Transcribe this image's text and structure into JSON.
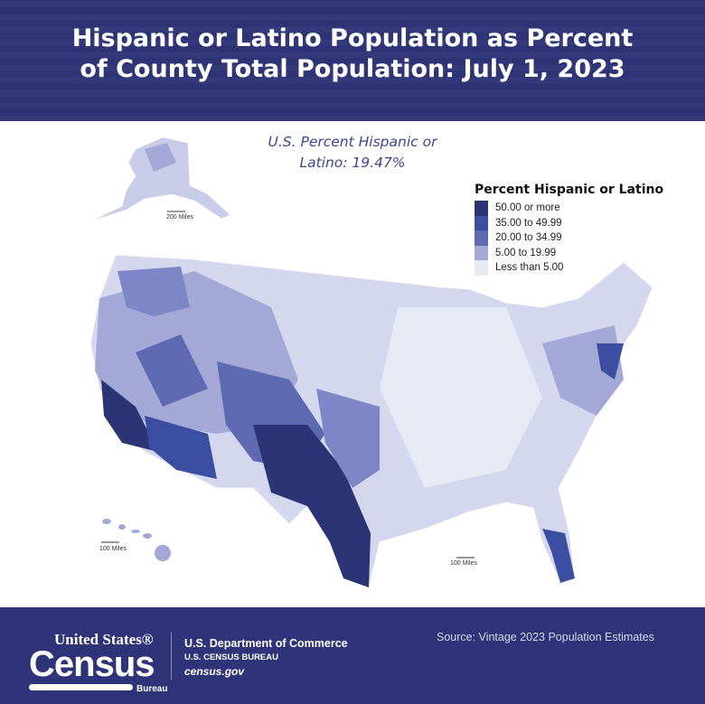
{
  "header": {
    "title_line1": "Hispanic or Latino Population as Percent",
    "title_line2": "of County Total Population: July 1, 2023"
  },
  "subtitle": {
    "line1": "U.S. Percent Hispanic or",
    "line2": "Latino: 19.47%"
  },
  "legend": {
    "title": "Percent Hispanic or Latino",
    "items": [
      {
        "label": "50.00 or more",
        "color": "#2b3474"
      },
      {
        "label": "35.00 to 49.99",
        "color": "#3c4ea2"
      },
      {
        "label": "20.00 to 34.99",
        "color": "#5d6ab2"
      },
      {
        "label": "5.00 to 19.99",
        "color": "#a3a8d6"
      },
      {
        "label": "Less than 5.00",
        "color": "#e7e9f5"
      }
    ]
  },
  "map": {
    "scale_alaska": "200 Miles",
    "scale_hawaii": "100 Miles",
    "scale_conus": "100 Miles"
  },
  "footer": {
    "logo_united_states": "United States®",
    "logo_census": "Census",
    "logo_bureau": "Bureau",
    "dept": "U.S. Department of Commerce",
    "bureau": "U.S. CENSUS BUREAU",
    "website": "census.gov",
    "source": "Source: Vintage 2023 Population Estimates"
  }
}
